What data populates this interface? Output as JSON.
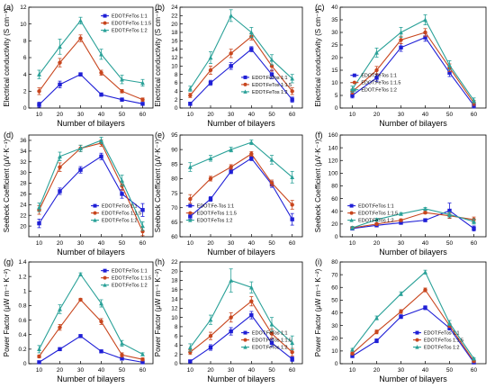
{
  "figure_xlabel": "Number of bilayers",
  "series_colors": [
    "#1f1fd6",
    "#c8461e",
    "#2aa198"
  ],
  "series_markers": [
    "square",
    "circle",
    "triangle"
  ],
  "chart_data": [
    {
      "panel": "(a)",
      "type": "line",
      "ylabel": "Electrical conductivity (S cm⁻¹)",
      "xlabel": "Number of bilayers",
      "x": [
        10,
        20,
        30,
        40,
        50,
        60
      ],
      "xlim": [
        5,
        65
      ],
      "xticks": [
        10,
        20,
        30,
        40,
        50,
        60
      ],
      "ylim": [
        0,
        12
      ],
      "yticks": [
        0,
        2,
        4,
        6,
        8,
        10,
        12
      ],
      "legend": "top-right",
      "series": [
        {
          "name": "EDOT:FeTos 1:1",
          "values": [
            0.4,
            2.8,
            4.0,
            1.6,
            1.0,
            0.5
          ],
          "errors": [
            0.3,
            0.4,
            0.2,
            0.2,
            0.2,
            0.1
          ]
        },
        {
          "name": "EDOT:FeTos 1:1.5",
          "values": [
            2.0,
            5.4,
            8.3,
            4.2,
            2.0,
            1.0
          ],
          "errors": [
            0.4,
            0.5,
            0.4,
            0.3,
            0.2,
            0.2
          ]
        },
        {
          "name": "EDOT:FeTos 1:2",
          "values": [
            4.0,
            7.3,
            10.4,
            6.4,
            3.4,
            3.0
          ],
          "errors": [
            0.5,
            0.9,
            0.4,
            0.6,
            0.5,
            0.4
          ]
        }
      ]
    },
    {
      "panel": "(b)",
      "type": "line",
      "ylabel": "Electrical conductivity (S cm⁻¹)",
      "xlabel": "Number of bilayers",
      "x": [
        10,
        20,
        30,
        40,
        50,
        60
      ],
      "xlim": [
        5,
        65
      ],
      "xticks": [
        10,
        20,
        30,
        40,
        50,
        60
      ],
      "ylim": [
        0,
        24
      ],
      "yticks": [
        0,
        2,
        4,
        6,
        8,
        10,
        12,
        14,
        16,
        18,
        20,
        22,
        24
      ],
      "legend": "bottom-right",
      "series": [
        {
          "name": "EDOT:FeTos 1:1",
          "values": [
            1.0,
            6.0,
            10.0,
            14.0,
            8.0,
            2.0
          ],
          "errors": [
            0.4,
            0.6,
            0.8,
            0.6,
            1.0,
            0.6
          ]
        },
        {
          "name": "EDOT:FeTos 1:1.5",
          "values": [
            3.0,
            9.0,
            13.0,
            17.0,
            10.0,
            4.0
          ],
          "errors": [
            0.5,
            1.0,
            1.0,
            0.8,
            1.2,
            0.8
          ]
        },
        {
          "name": "EDOT:FeTos 1:2",
          "values": [
            4.6,
            12.0,
            22.0,
            18.0,
            11.5,
            7.0
          ],
          "errors": [
            0.6,
            1.4,
            1.4,
            1.2,
            1.2,
            1.0
          ]
        }
      ]
    },
    {
      "panel": "(c)",
      "type": "line",
      "ylabel": "Electrical conductivity (S cm⁻¹)",
      "xlabel": "Number of bilayers",
      "x": [
        10,
        20,
        30,
        40,
        50,
        60
      ],
      "xlim": [
        5,
        65
      ],
      "xticks": [
        10,
        20,
        30,
        40,
        50,
        60
      ],
      "ylim": [
        0,
        40
      ],
      "yticks": [
        0,
        5,
        10,
        15,
        20,
        25,
        30,
        35,
        40
      ],
      "legend": "left",
      "series": [
        {
          "name": "EDOT:FeTos 1:1",
          "values": [
            5.0,
            12.0,
            24.0,
            28.0,
            14.0,
            1.0
          ],
          "errors": [
            1.0,
            1.4,
            1.5,
            1.5,
            1.5,
            1.0
          ]
        },
        {
          "name": "EDOT:FeTos 1:1.5",
          "values": [
            6.5,
            15.0,
            27.0,
            30.0,
            16.0,
            2.0
          ],
          "errors": [
            1.0,
            1.5,
            1.5,
            1.5,
            1.5,
            1.0
          ]
        },
        {
          "name": "EDOT:FeTos 1:2",
          "values": [
            7.5,
            22.0,
            30.0,
            35.0,
            17.0,
            3.0
          ],
          "errors": [
            1.2,
            1.8,
            2.0,
            2.0,
            1.8,
            1.0
          ]
        }
      ]
    },
    {
      "panel": "(d)",
      "type": "line",
      "ylabel": "Seebeck Coefficient (μV·K⁻¹)",
      "xlabel": "Number of bilayers",
      "x": [
        10,
        20,
        30,
        40,
        50,
        60
      ],
      "xlim": [
        5,
        65
      ],
      "xticks": [
        10,
        20,
        30,
        40,
        50,
        60
      ],
      "ylim": [
        18,
        37
      ],
      "yticks": [
        20,
        22,
        24,
        26,
        28,
        30,
        32,
        34,
        36
      ],
      "legend": "bottom-right",
      "series": [
        {
          "name": "EDOT:FeTos 1:1",
          "values": [
            20.5,
            26.5,
            30.5,
            33.0,
            26.0,
            23.0
          ],
          "errors": [
            0.8,
            0.6,
            0.6,
            0.6,
            0.8,
            1.2
          ]
        },
        {
          "name": "EDOT:FeTos 1:1.5",
          "values": [
            23.0,
            31.0,
            34.5,
            35.5,
            27.5,
            19.0
          ],
          "errors": [
            0.8,
            0.8,
            0.6,
            0.6,
            0.8,
            0.8
          ]
        },
        {
          "name": "EDOT:FeTos 1:2",
          "values": [
            23.5,
            33.0,
            34.5,
            36.0,
            28.5,
            20.0
          ],
          "errors": [
            0.8,
            0.8,
            0.6,
            0.6,
            1.0,
            0.8
          ]
        }
      ]
    },
    {
      "panel": "(e)",
      "type": "line",
      "ylabel": "Seebeck Coefficient (μV·K⁻¹)",
      "xlabel": "Number of bilayers",
      "x": [
        10,
        20,
        30,
        40,
        50,
        60
      ],
      "xlim": [
        5,
        65
      ],
      "xticks": [
        10,
        20,
        30,
        40,
        50,
        60
      ],
      "ylim": [
        60,
        95
      ],
      "yticks": [
        60,
        65,
        70,
        75,
        80,
        85,
        90,
        95
      ],
      "legend": "bottom-left",
      "series": [
        {
          "name": "EDOT:Fe-Tos 1:1",
          "values": [
            67.0,
            73.0,
            82.5,
            87.0,
            78.0,
            66.0
          ],
          "errors": [
            1.0,
            0.8,
            0.8,
            0.8,
            1.0,
            2.0
          ]
        },
        {
          "name": "EDOT:FeTos 1:1.5",
          "values": [
            73.0,
            80.0,
            84.0,
            88.5,
            78.5,
            71.0
          ],
          "errors": [
            1.5,
            0.8,
            0.8,
            0.8,
            1.0,
            1.5
          ]
        },
        {
          "name": "EDOT:FeTos 1:2",
          "values": [
            84.0,
            87.0,
            90.0,
            92.5,
            86.5,
            80.5
          ],
          "errors": [
            1.5,
            1.0,
            0.8,
            0.8,
            1.5,
            2.0
          ]
        }
      ]
    },
    {
      "panel": "(f)",
      "type": "line",
      "ylabel": "Seebeck Coefficient (μV·K⁻¹)",
      "xlabel": "Number of bilayers",
      "x": [
        10,
        20,
        30,
        40,
        50,
        60
      ],
      "xlim": [
        5,
        65
      ],
      "xticks": [
        10,
        20,
        30,
        40,
        50,
        60
      ],
      "ylim": [
        0,
        160
      ],
      "yticks": [
        0,
        20,
        40,
        60,
        80,
        100,
        120,
        140,
        160
      ],
      "legend": "bottom-left",
      "series": [
        {
          "name": "EDOT:FeTos 1:1",
          "values": [
            13.0,
            18.0,
            22.0,
            26.0,
            41.0,
            13.0
          ],
          "errors": [
            2.0,
            2.0,
            2.0,
            2.0,
            12.0,
            4.0
          ]
        },
        {
          "name": "EDOT:FeTos 1:1.5",
          "values": [
            14.0,
            20.0,
            26.0,
            38.0,
            33.0,
            27.0
          ],
          "errors": [
            2.0,
            2.0,
            2.0,
            2.0,
            4.0,
            4.0
          ]
        },
        {
          "name": "EDOT:FeTos 1:2",
          "values": [
            14.0,
            27.0,
            36.0,
            44.0,
            35.0,
            24.0
          ],
          "errors": [
            2.0,
            2.0,
            2.0,
            2.0,
            4.0,
            4.0
          ]
        }
      ]
    },
    {
      "panel": "(g)",
      "type": "line",
      "ylabel": "Power Factor (μW m⁻¹ K⁻²)",
      "xlabel": "Number of bilayers",
      "x": [
        10,
        20,
        30,
        40,
        50,
        60
      ],
      "xlim": [
        5,
        65
      ],
      "xticks": [
        10,
        20,
        30,
        40,
        50,
        60
      ],
      "ylim": [
        0,
        1.4
      ],
      "yticks": [
        0.0,
        0.2,
        0.4,
        0.6,
        0.8,
        1.0,
        1.2,
        1.4
      ],
      "legend": "top-right",
      "series": [
        {
          "name": "EDOT:FeTos 1:1",
          "values": [
            0.02,
            0.2,
            0.38,
            0.17,
            0.07,
            0.02
          ],
          "errors": [
            0.01,
            0.02,
            0.02,
            0.01,
            0.01,
            0.01
          ]
        },
        {
          "name": "EDOT:FeTos 1:1.5",
          "values": [
            0.1,
            0.5,
            0.88,
            0.58,
            0.12,
            0.06
          ],
          "errors": [
            0.02,
            0.04,
            0.02,
            0.04,
            0.03,
            0.02
          ]
        },
        {
          "name": "EDOT:FeTos 1:2",
          "values": [
            0.2,
            0.75,
            1.23,
            0.83,
            0.28,
            0.13
          ],
          "errors": [
            0.05,
            0.06,
            0.02,
            0.05,
            0.04,
            0.02
          ]
        }
      ]
    },
    {
      "panel": "(h)",
      "type": "line",
      "ylabel": "Power Factor (μW m⁻¹ K⁻²)",
      "xlabel": "Number of bilayers",
      "x": [
        10,
        20,
        30,
        40,
        50,
        60
      ],
      "xlim": [
        5,
        65
      ],
      "xticks": [
        10,
        20,
        30,
        40,
        50,
        60
      ],
      "ylim": [
        0,
        22
      ],
      "yticks": [
        0,
        2,
        4,
        6,
        8,
        10,
        12,
        14,
        16,
        18,
        20,
        22
      ],
      "legend": "bottom-right",
      "series": [
        {
          "name": "EDOT:FeTos 1:1",
          "values": [
            0.5,
            3.5,
            7.0,
            10.5,
            4.5,
            1.0
          ],
          "errors": [
            0.3,
            0.6,
            0.8,
            0.8,
            0.8,
            0.5
          ]
        },
        {
          "name": "EDOT:FeTos 1:1.5",
          "values": [
            2.5,
            6.0,
            10.0,
            13.5,
            6.5,
            2.5
          ],
          "errors": [
            0.5,
            0.8,
            1.0,
            1.0,
            1.0,
            0.8
          ]
        },
        {
          "name": "EDOT:FeTos 1:2",
          "values": [
            3.5,
            9.5,
            18.0,
            16.5,
            8.5,
            4.5
          ],
          "errors": [
            0.8,
            1.0,
            2.5,
            1.2,
            1.5,
            1.5
          ]
        }
      ]
    },
    {
      "panel": "(i)",
      "type": "line",
      "ylabel": "Power Factor (μW m⁻¹ K⁻²)",
      "xlabel": "Number of bilayers",
      "x": [
        10,
        20,
        30,
        40,
        50,
        60
      ],
      "xlim": [
        5,
        65
      ],
      "xticks": [
        10,
        20,
        30,
        40,
        50,
        60
      ],
      "ylim": [
        0,
        80
      ],
      "yticks": [
        0,
        10,
        20,
        30,
        40,
        50,
        60,
        70,
        80
      ],
      "legend": "bottom-right",
      "series": [
        {
          "name": "EDOT:FeTos 1:1",
          "values": [
            6.0,
            18.0,
            37.0,
            44.0,
            28.0,
            1.0
          ],
          "errors": [
            1.0,
            1.5,
            1.5,
            1.5,
            1.5,
            0.5
          ]
        },
        {
          "name": "EDOT:FeTos 1:1.5",
          "values": [
            8.0,
            25.0,
            41.0,
            58.0,
            30.0,
            2.0
          ],
          "errors": [
            1.0,
            1.5,
            1.5,
            1.5,
            1.5,
            0.5
          ]
        },
        {
          "name": "EDOT:FeTos 1:2",
          "values": [
            11.0,
            36.0,
            55.0,
            72.0,
            32.0,
            4.0
          ],
          "errors": [
            1.0,
            1.5,
            1.5,
            1.5,
            2.0,
            0.5
          ]
        }
      ]
    }
  ]
}
